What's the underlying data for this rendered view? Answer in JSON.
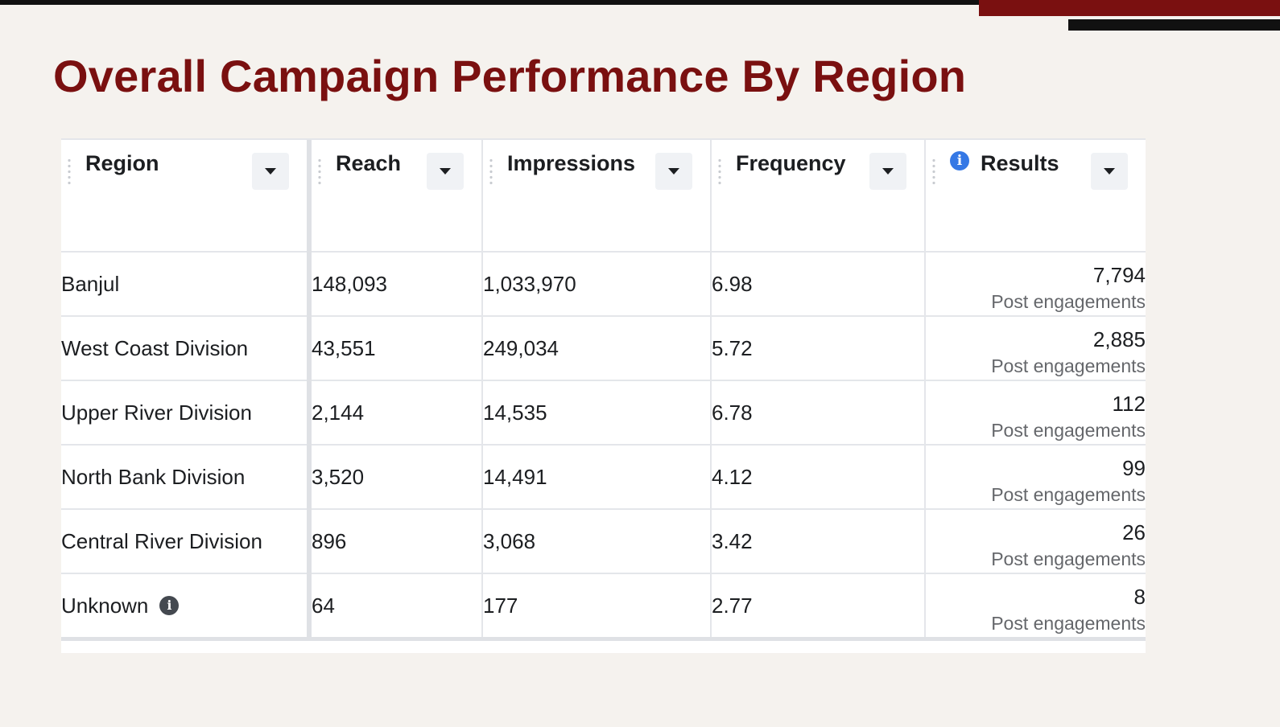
{
  "title": "Overall Campaign Performance By Region",
  "colors": {
    "title": "#7a1010",
    "accent_red": "#7a1010",
    "accent_black": "#111111",
    "background": "#f5f2ee",
    "info_icon": "#3578e5"
  },
  "table": {
    "columns": [
      {
        "key": "region",
        "label": "Region",
        "sort_icon": "caret-down-icon"
      },
      {
        "key": "reach",
        "label": "Reach",
        "sort_icon": "caret-down-icon"
      },
      {
        "key": "impressions",
        "label": "Impressions",
        "sort_icon": "caret-down-icon"
      },
      {
        "key": "frequency",
        "label": "Frequency",
        "sort_icon": "caret-down-icon"
      },
      {
        "key": "results",
        "label": "Results",
        "sort_icon": "caret-down-icon",
        "info_icon": "info-icon"
      }
    ],
    "rows": [
      {
        "region": "Banjul",
        "reach": "148,093",
        "impressions": "1,033,970",
        "frequency": "6.98",
        "results": "7,794",
        "results_label": "Post engagements"
      },
      {
        "region": "West Coast Division",
        "reach": "43,551",
        "impressions": "249,034",
        "frequency": "5.72",
        "results": "2,885",
        "results_label": "Post engagements"
      },
      {
        "region": "Upper River Division",
        "reach": "2,144",
        "impressions": "14,535",
        "frequency": "6.78",
        "results": "112",
        "results_label": "Post engagements"
      },
      {
        "region": "North Bank Division",
        "reach": "3,520",
        "impressions": "14,491",
        "frequency": "4.12",
        "results": "99",
        "results_label": "Post engagements"
      },
      {
        "region": "Central River Division",
        "reach": "896",
        "impressions": "3,068",
        "frequency": "3.42",
        "results": "26",
        "results_label": "Post engagements"
      },
      {
        "region": "Unknown",
        "region_info_icon": "info-icon",
        "reach": "64",
        "impressions": "177",
        "frequency": "2.77",
        "results": "8",
        "results_label": "Post engagements"
      }
    ]
  }
}
